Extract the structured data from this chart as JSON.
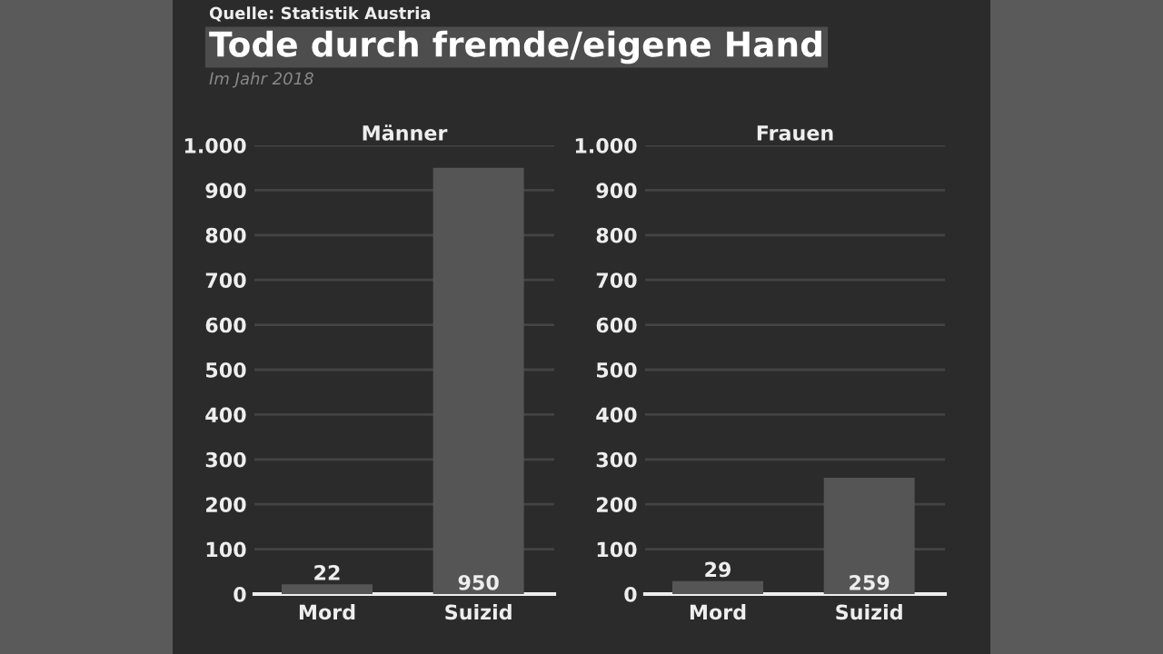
{
  "chart_data": [
    {
      "type": "bar",
      "title": "Männer",
      "annotations": [
        "Quelle: Statistik Austria",
        "Tode durch fremde/eigene Hand",
        "Im Jahr 2018"
      ],
      "categories": [
        "Mord",
        "Suizid"
      ],
      "values": [
        22,
        950
      ],
      "color": "#555555",
      "ylim": [
        0,
        1000
      ],
      "yticks": [
        0,
        100,
        200,
        300,
        400,
        500,
        600,
        700,
        800,
        900,
        {
          "value": 1000,
          "label": "1.000"
        }
      ],
      "grid": "y",
      "data_labels": true
    },
    {
      "type": "bar",
      "title": "Frauen",
      "categories": [
        "Mord",
        "Suizid"
      ],
      "values": [
        29,
        259
      ],
      "color": "#555555",
      "ylim": [
        0,
        1000
      ],
      "yticks": [
        0,
        100,
        200,
        300,
        400,
        500,
        600,
        700,
        800,
        900,
        {
          "value": 1000,
          "label": "1.000"
        }
      ],
      "grid": "y",
      "data_labels": true
    }
  ]
}
